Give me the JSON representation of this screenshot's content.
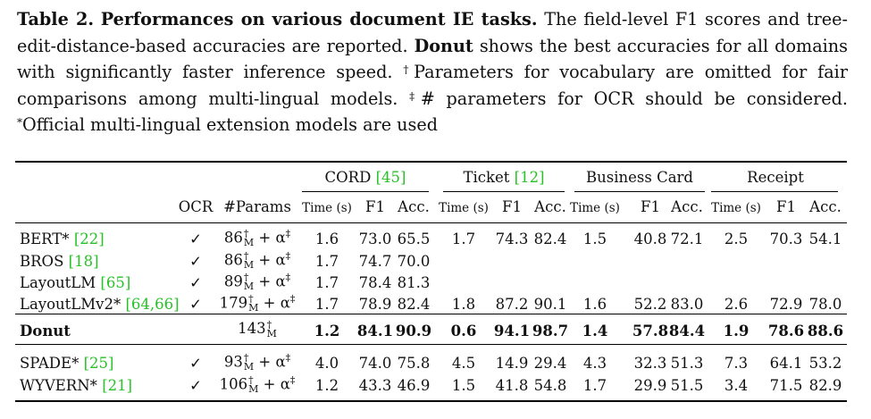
{
  "caption": {
    "label": "Table 2.",
    "title": "Performances on various document IE tasks.",
    "text1": "The field-level F1 scores and tree-edit-distance-based accuracies are reported.",
    "model": "Donut",
    "text2": "shows the best accuracies for all domains with significantly faster inference speed.",
    "dagger": "†",
    "text3": "Parameters for vocabulary are omitted for fair comparisons among multi-lingual models.",
    "ddagger": "‡",
    "text4": "# parameters for OCR should be considered.",
    "star": "*",
    "text5": "Official multi-lingual extension models are used"
  },
  "header": {
    "groups": [
      {
        "name": "CORD",
        "ref": "[45]"
      },
      {
        "name": "Ticket",
        "ref": "[12]"
      },
      {
        "name": "Business Card",
        "ref": ""
      },
      {
        "name": "Receipt",
        "ref": ""
      }
    ],
    "ocr": "OCR",
    "params": "#Params",
    "time": "Time (s)",
    "f1": "F1",
    "acc": "Acc."
  },
  "rows": [
    {
      "name": "BERT*",
      "ref": "[22]",
      "ocr": "✓",
      "p_num": "86",
      "p_sup": "†",
      "p_sub": "M",
      "p_tail": "+ α",
      "p_tail_sup": "‡",
      "v": [
        "1.6",
        "73.0",
        "65.5",
        "1.7",
        "74.3",
        "82.4",
        "1.5",
        "40.8",
        "72.1",
        "2.5",
        "70.3",
        "54.1"
      ]
    },
    {
      "name": "BROS",
      "ref": "[18]",
      "ocr": "✓",
      "p_num": "86",
      "p_sup": "†",
      "p_sub": "M",
      "p_tail": "+ α",
      "p_tail_sup": "‡",
      "v": [
        "1.7",
        "74.7",
        "70.0",
        "",
        "",
        "",
        "",
        "",
        "",
        "",
        "",
        ""
      ]
    },
    {
      "name": "LayoutLM",
      "ref": "[65]",
      "ocr": "✓",
      "p_num": "89",
      "p_sup": "†",
      "p_sub": "M",
      "p_tail": "+ α",
      "p_tail_sup": "‡",
      "v": [
        "1.7",
        "78.4",
        "81.3",
        "",
        "",
        "",
        "",
        "",
        "",
        "",
        "",
        ""
      ]
    },
    {
      "name": "LayoutLMv2*",
      "ref": "[64,66]",
      "ocr": "✓",
      "p_num": "179",
      "p_sup": "†",
      "p_sub": "M",
      "p_tail": "+ α",
      "p_tail_sup": "‡",
      "v": [
        "1.7",
        "78.9",
        "82.4",
        "1.8",
        "87.2",
        "90.1",
        "1.6",
        "52.2",
        "83.0",
        "2.6",
        "72.9",
        "78.0"
      ]
    },
    {
      "name": "Donut",
      "ref": "",
      "ocr": "",
      "p_num": "143",
      "p_sup": "†",
      "p_sub": "M",
      "p_tail": "",
      "p_tail_sup": "",
      "v": [
        "1.2",
        "84.1",
        "90.9",
        "0.6",
        "94.1",
        "98.7",
        "1.4",
        "57.8",
        "84.4",
        "1.9",
        "78.6",
        "88.6"
      ],
      "bold": true
    },
    {
      "name": "SPADE*",
      "ref": "[25]",
      "ocr": "✓",
      "p_num": "93",
      "p_sup": "†",
      "p_sub": "M",
      "p_tail": "+ α",
      "p_tail_sup": "‡",
      "v": [
        "4.0",
        "74.0",
        "75.8",
        "4.5",
        "14.9",
        "29.4",
        "4.3",
        "32.3",
        "51.3",
        "7.3",
        "64.1",
        "53.2"
      ]
    },
    {
      "name": "WYVERN*",
      "ref": "[21]",
      "ocr": "✓",
      "p_num": "106",
      "p_sup": "†",
      "p_sub": "M",
      "p_tail": "+ α",
      "p_tail_sup": "‡",
      "v": [
        "1.2",
        "43.3",
        "46.9",
        "1.5",
        "41.8",
        "54.8",
        "1.7",
        "29.9",
        "51.5",
        "3.4",
        "71.5",
        "82.9"
      ]
    }
  ]
}
